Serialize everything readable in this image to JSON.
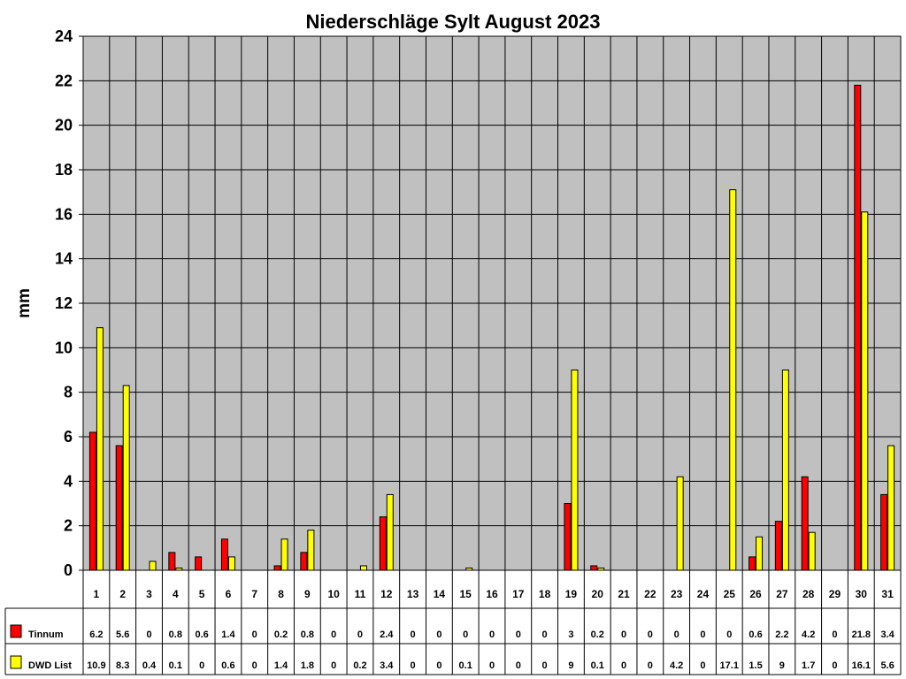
{
  "chart_data": {
    "type": "bar",
    "title": "Niederschläge Sylt August 2023",
    "ylabel": "mm",
    "xlabel": "",
    "ylim": [
      0,
      24
    ],
    "yticks": [
      0,
      2,
      4,
      6,
      8,
      10,
      12,
      14,
      16,
      18,
      20,
      22,
      24
    ],
    "grid": true,
    "legend": "data-table-left",
    "categories": [
      "1",
      "2",
      "3",
      "4",
      "5",
      "6",
      "7",
      "8",
      "9",
      "10",
      "11",
      "12",
      "13",
      "14",
      "15",
      "16",
      "17",
      "18",
      "19",
      "20",
      "21",
      "22",
      "23",
      "24",
      "25",
      "26",
      "27",
      "28",
      "29",
      "30",
      "31"
    ],
    "series": [
      {
        "name": "Tinnum",
        "color": "#ff0000",
        "values": [
          6.2,
          5.6,
          0,
          0.8,
          0.6,
          1.4,
          0,
          0.2,
          0.8,
          0,
          0,
          2.4,
          0,
          0,
          0,
          0,
          0,
          0,
          3,
          0.2,
          0,
          0,
          0,
          0,
          0,
          0.6,
          2.2,
          4.2,
          0,
          21.8,
          3.4
        ],
        "labels": [
          "6.2",
          "5.6",
          "0",
          "0.8",
          "0.6",
          "1.4",
          "0",
          "0.2",
          "0.8",
          "0",
          "0",
          "2.4",
          "0",
          "0",
          "0",
          "0",
          "0",
          "0",
          "3",
          "0.2",
          "0",
          "0",
          "0",
          "0",
          "0",
          "0.6",
          "2.2",
          "4.2",
          "0",
          "21.8",
          "3.4"
        ]
      },
      {
        "name": "DWD List",
        "color": "#ffff00",
        "values": [
          10.9,
          8.3,
          0.4,
          0.1,
          0,
          0.6,
          0,
          1.4,
          1.8,
          0,
          0.2,
          3.4,
          0,
          0,
          0.1,
          0,
          0,
          0,
          9,
          0.1,
          0,
          0,
          4.2,
          0,
          17.1,
          1.5,
          9,
          1.7,
          0,
          16.1,
          5.6
        ],
        "labels": [
          "10.9",
          "8.3",
          "0.4",
          "0.1",
          "0",
          "0.6",
          "0",
          "1.4",
          "1.8",
          "0",
          "0.2",
          "3.4",
          "0",
          "0",
          "0.1",
          "0",
          "0",
          "0",
          "9",
          "0.1",
          "0",
          "0",
          "4.2",
          "0",
          "17.1",
          "1.5",
          "9",
          "1.7",
          "0",
          "16.1",
          "5.6"
        ]
      }
    ],
    "colors": {
      "plot_background": "#c0c0c0",
      "gridline": "#000000"
    }
  }
}
